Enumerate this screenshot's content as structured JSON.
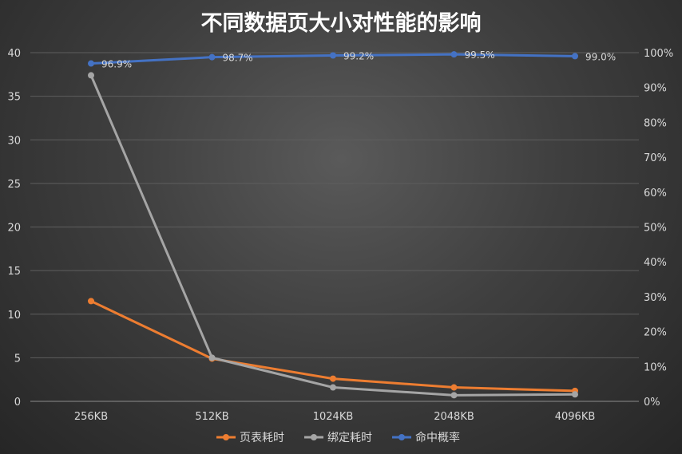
{
  "chart_data": {
    "type": "line",
    "title": "不同数据页大小对性能的影响",
    "categories": [
      "256KB",
      "512KB",
      "1024KB",
      "2048KB",
      "4096KB"
    ],
    "ylim": [
      0,
      40
    ],
    "y_ticks": [
      "0",
      "5",
      "10",
      "15",
      "20",
      "25",
      "30",
      "35",
      "40"
    ],
    "y2lim": [
      0,
      100
    ],
    "y2_ticks": [
      "0%",
      "10%",
      "20%",
      "30%",
      "40%",
      "50%",
      "60%",
      "70%",
      "80%",
      "90%",
      "100%"
    ],
    "grid": true,
    "legend_position": "bottom",
    "series": [
      {
        "name": "页表耗时",
        "axis": "left",
        "color": "#ed7d31",
        "values": [
          11.5,
          4.9,
          2.6,
          1.6,
          1.2
        ]
      },
      {
        "name": "绑定耗时",
        "axis": "left",
        "color": "#a5a5a5",
        "values": [
          37.4,
          5.0,
          1.6,
          0.7,
          0.8
        ]
      },
      {
        "name": "命中概率",
        "axis": "right",
        "color": "#4472c4",
        "values": [
          96.9,
          98.7,
          99.2,
          99.5,
          99.0
        ],
        "labels": [
          "96.9%",
          "98.7%",
          "99.2%",
          "99.5%",
          "99.0%"
        ]
      }
    ]
  }
}
